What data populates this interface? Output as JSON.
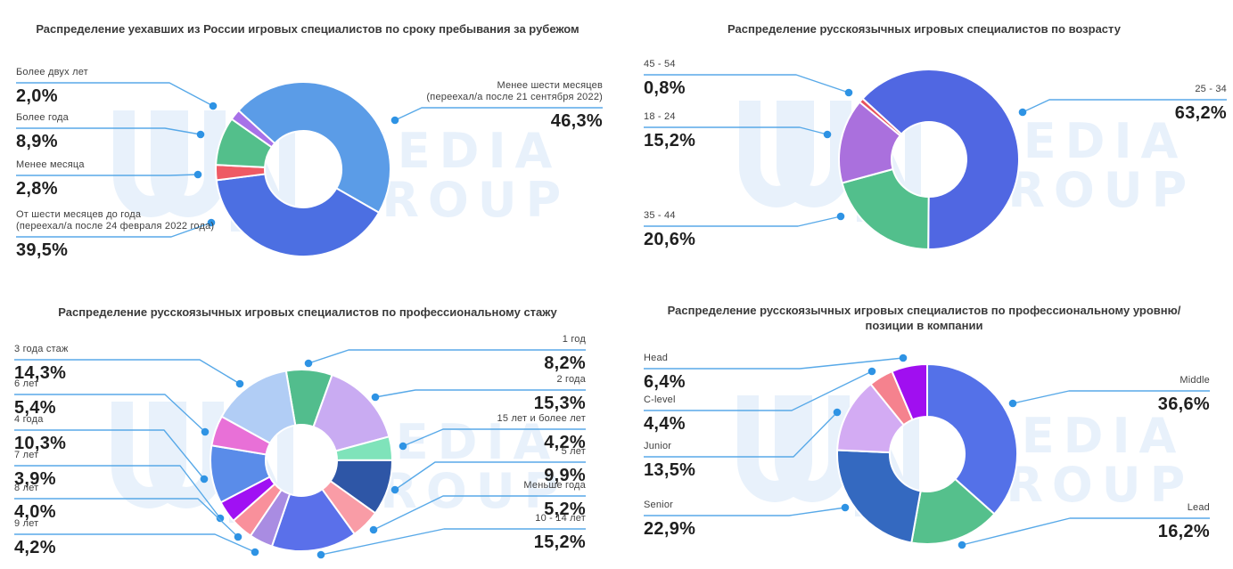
{
  "page": {
    "background": "#ffffff"
  },
  "style": {
    "leader_line_color": "#58a9e8",
    "leader_dot_color": "#2e93e4",
    "title_color": "#3a3a3a",
    "label_color": "#3f3f3f",
    "percent_color": "#1f1f1f",
    "watermark_color": "#e8f1fb"
  },
  "watermark": {
    "media": "MEDIA",
    "group": "GROUP"
  },
  "chart_data": [
    {
      "type": "pie",
      "subtype": "donut",
      "title": "Распределение уехавших из России игровых специалистов по сроку пребывания за рубежом",
      "legend_position": "callout-labels",
      "slices": [
        {
          "label": [
            "Менее шести месяцев",
            "(переехал/а после 21 сентября 2022)"
          ],
          "pct": "46,3%",
          "value": 46.3,
          "color": "#5b9ce7"
        },
        {
          "label": [
            "От шести месяцев до года",
            "(переехал/а после 24 февраля 2022 года)"
          ],
          "pct": "39,5%",
          "value": 39.5,
          "color": "#4c6fe2"
        },
        {
          "label": [
            "Менее месяца"
          ],
          "pct": "2,8%",
          "value": 2.8,
          "color": "#ee5a64"
        },
        {
          "label": [
            "Более года"
          ],
          "pct": "8,9%",
          "value": 8.9,
          "color": "#53bf8b"
        },
        {
          "label": [
            "Более двух лет"
          ],
          "pct": "2,0%",
          "value": 2.0,
          "color": "#a771e8"
        }
      ]
    },
    {
      "type": "pie",
      "subtype": "donut",
      "title": "Распределение русскоязычных игровых специалистов по возрасту",
      "legend_position": "callout-labels",
      "slices": [
        {
          "label": [
            "25 - 34"
          ],
          "pct": "63,2%",
          "value": 63.2,
          "color": "#5067e2"
        },
        {
          "label": [
            "35 - 44"
          ],
          "pct": "20,6%",
          "value": 20.6,
          "color": "#52bf8c"
        },
        {
          "label": [
            "18 - 24"
          ],
          "pct": "15,2%",
          "value": 15.2,
          "color": "#aa70dd"
        },
        {
          "label": [
            "45 - 54"
          ],
          "pct": "0,8%",
          "value": 0.8,
          "color": "#e8525c"
        }
      ]
    },
    {
      "type": "pie",
      "subtype": "donut",
      "title": "Распределение русскоязычных игровых специалистов по профессиональному стажу",
      "legend_position": "callout-labels",
      "slices": [
        {
          "label": [
            "1 год"
          ],
          "pct": "8,2%",
          "value": 8.2,
          "color": "#52bd8d"
        },
        {
          "label": [
            "2 года"
          ],
          "pct": "15,3%",
          "value": 15.3,
          "color": "#c9abf2"
        },
        {
          "label": [
            "15 лет и более лет"
          ],
          "pct": "4,2%",
          "value": 4.2,
          "color": "#7fe3ba"
        },
        {
          "label": [
            "5 лет"
          ],
          "pct": "9,9%",
          "value": 9.9,
          "color": "#2e56a6"
        },
        {
          "label": [
            "Меньше года"
          ],
          "pct": "5,2%",
          "value": 5.2,
          "color": "#f99ca6"
        },
        {
          "label": [
            "10 - 14 лет"
          ],
          "pct": "15,2%",
          "value": 15.2,
          "color": "#5a70ea"
        },
        {
          "label": [
            "9 лет"
          ],
          "pct": "4,2%",
          "value": 4.2,
          "color": "#a98ce2"
        },
        {
          "label": [
            "8 лет"
          ],
          "pct": "4,0%",
          "value": 4.0,
          "color": "#f9909b"
        },
        {
          "label": [
            "7 лет"
          ],
          "pct": "3,9%",
          "value": 3.9,
          "color": "#a011f3"
        },
        {
          "label": [
            "4 года"
          ],
          "pct": "10,3%",
          "value": 10.3,
          "color": "#5a8ce9"
        },
        {
          "label": [
            "6 лет"
          ],
          "pct": "5,4%",
          "value": 5.4,
          "color": "#e870d7"
        },
        {
          "label": [
            "3 года стаж"
          ],
          "pct": "14,3%",
          "value": 14.3,
          "color": "#b1cdf5"
        }
      ]
    },
    {
      "type": "pie",
      "subtype": "donut",
      "title": "Распределение русскоязычных игровых специалистов по профессиональному уровню/позиции в компании",
      "legend_position": "callout-labels",
      "slices": [
        {
          "label": [
            "Middle"
          ],
          "pct": "36,6%",
          "value": 36.6,
          "color": "#5471e8"
        },
        {
          "label": [
            "Lead"
          ],
          "pct": "16,2%",
          "value": 16.2,
          "color": "#55c08c"
        },
        {
          "label": [
            "Senior"
          ],
          "pct": "22,9%",
          "value": 22.9,
          "color": "#3469c0"
        },
        {
          "label": [
            "Junior"
          ],
          "pct": "13,5%",
          "value": 13.5,
          "color": "#d3abf3"
        },
        {
          "label": [
            "C-level"
          ],
          "pct": "4,4%",
          "value": 4.4,
          "color": "#f5828e"
        },
        {
          "label": [
            "Head"
          ],
          "pct": "6,4%",
          "value": 6.4,
          "color": "#a00ff0"
        }
      ]
    }
  ]
}
